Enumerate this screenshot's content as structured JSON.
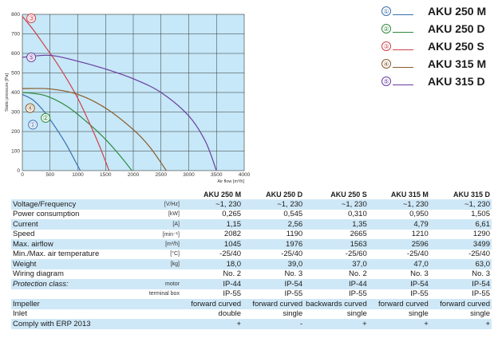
{
  "chart_data": {
    "type": "line",
    "ylabel": "Static pressure [Pa]",
    "xlabel": "Air flow [m³/h]",
    "xlim": [
      0,
      4000
    ],
    "ylim": [
      0,
      800
    ],
    "xticks": [
      "0",
      "500",
      "1000",
      "1500",
      "2000",
      "2500",
      "3000",
      "3500",
      "4000"
    ],
    "yticks": [
      "0",
      "100",
      "200",
      "300",
      "400",
      "500",
      "600",
      "700",
      "800"
    ],
    "grid": true,
    "legend_position": "right",
    "background": "#c6e8f8",
    "series": [
      {
        "name": "AKU 250 M",
        "marker": "①",
        "color": "#3a6fb0",
        "x": [
          0,
          200,
          400,
          600,
          800,
          950,
          1045
        ],
        "y": [
          390,
          360,
          300,
          220,
          130,
          50,
          0
        ],
        "label_at": [
          190,
          235
        ]
      },
      {
        "name": "AKU 250 D",
        "marker": "②",
        "color": "#2e8a3c",
        "x": [
          0,
          400,
          800,
          1200,
          1500,
          1750,
          1976
        ],
        "y": [
          400,
          385,
          330,
          240,
          160,
          80,
          0
        ],
        "label_at": [
          420,
          270
        ]
      },
      {
        "name": "AKU 250 S",
        "marker": "③",
        "color": "#d0404a",
        "x": [
          0,
          200,
          400,
          600,
          800,
          1000,
          1200,
          1400,
          1563
        ],
        "y": [
          790,
          720,
          640,
          560,
          470,
          370,
          250,
          120,
          0
        ],
        "label_at": [
          160,
          780
        ]
      },
      {
        "name": "AKU 315 M",
        "marker": "④",
        "color": "#8a5a2a",
        "x": [
          0,
          500,
          1000,
          1500,
          2000,
          2300,
          2596
        ],
        "y": [
          420,
          418,
          390,
          320,
          210,
          120,
          0
        ],
        "label_at": [
          140,
          320
        ]
      },
      {
        "name": "AKU 315 D",
        "marker": "⑤",
        "color": "#6a3aa0",
        "x": [
          0,
          500,
          1000,
          1500,
          2000,
          2500,
          3000,
          3300,
          3499
        ],
        "y": [
          580,
          590,
          560,
          520,
          470,
          400,
          280,
          150,
          0
        ],
        "label_at": [
          160,
          580
        ]
      }
    ]
  },
  "legend": [
    {
      "marker": "①",
      "name": "AKU 250 M",
      "color": "#3a6fb0"
    },
    {
      "marker": "②",
      "name": "AKU 250 D",
      "color": "#2e8a3c"
    },
    {
      "marker": "③",
      "name": "AKU 250 S",
      "color": "#d0404a"
    },
    {
      "marker": "④",
      "name": "AKU 315 M",
      "color": "#8a5a2a"
    },
    {
      "marker": "⑤",
      "name": "AKU 315 D",
      "color": "#6a3aa0"
    }
  ],
  "spec_table": {
    "headers": [
      "AKU 250 M",
      "AKU 250 D",
      "AKU 250 S",
      "AKU 315 M",
      "AKU 315 D"
    ],
    "rows": [
      {
        "label": "Voltage/Frequency",
        "unit": "[V/Hz]",
        "values": [
          "~1, 230",
          "~1, 230",
          "~1, 230",
          "~1, 230",
          "~1, 230"
        ]
      },
      {
        "label": "Power consumption",
        "unit": "[kW]",
        "values": [
          "0,265",
          "0,545",
          "0,310",
          "0,950",
          "1,505"
        ]
      },
      {
        "label": "Current",
        "unit": "[A]",
        "values": [
          "1,15",
          "2,56",
          "1,35",
          "4,79",
          "6,61"
        ]
      },
      {
        "label": "Speed",
        "unit": "[min⁻¹]",
        "values": [
          "2082",
          "1190",
          "2665",
          "1210",
          "1290"
        ]
      },
      {
        "label": "Max. airflow",
        "unit": "[m³/h]",
        "values": [
          "1045",
          "1976",
          "1563",
          "2596",
          "3499"
        ]
      },
      {
        "label": "Min./Max. air temperature",
        "unit": "[°C]",
        "values": [
          "-25/40",
          "-25/40",
          "-25/60",
          "-25/40",
          "-25/40"
        ]
      },
      {
        "label": "Weight",
        "unit": "[kg]",
        "values": [
          "18,0",
          "39,0",
          "37,0",
          "47,0",
          "63,0"
        ]
      },
      {
        "label": "Wiring diagram",
        "unit": "",
        "values": [
          "No. 2",
          "No. 3",
          "No. 2",
          "No. 3",
          "No. 3"
        ]
      },
      {
        "label": "Protection class:",
        "unit": "motor",
        "values": [
          "IP-44",
          "IP-54",
          "IP-44",
          "IP-54",
          "IP-54"
        ],
        "italic": true
      },
      {
        "label": "",
        "unit": "terminal box",
        "values": [
          "IP-55",
          "IP-55",
          "IP-55",
          "IP-55",
          "IP-55"
        ]
      },
      {
        "label": "Impeller",
        "unit": "",
        "values": [
          "forward curved",
          "forward curved",
          "backwards curved",
          "forward curved",
          "forward curved"
        ]
      },
      {
        "label": "Inlet",
        "unit": "",
        "values": [
          "double",
          "single",
          "single",
          "single",
          "single"
        ]
      },
      {
        "label": "Comply with ERP 2013",
        "unit": "",
        "values": [
          "+",
          "-",
          "+",
          "+",
          "+"
        ]
      }
    ]
  }
}
